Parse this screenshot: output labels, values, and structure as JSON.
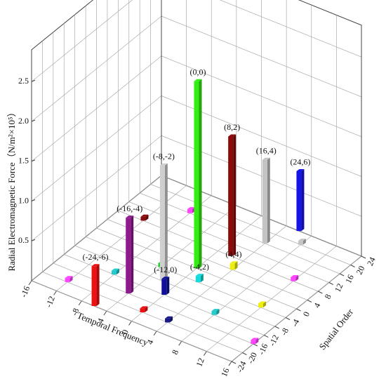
{
  "chart_data": {
    "type": "bar3d",
    "x_label": "Temporal Frequency",
    "y_label": "Spatial Order",
    "z_label": "Radial Electromagnetic Force（N/m²×10⁵）",
    "xlim": [
      -16,
      16
    ],
    "xticks": [
      -16,
      -12,
      -8,
      -4,
      0,
      4,
      8,
      12,
      16
    ],
    "ylim": [
      -24,
      24
    ],
    "yticks": [
      -24,
      -20,
      -16,
      -12,
      -8,
      -4,
      0,
      4,
      8,
      12,
      16,
      20,
      24
    ],
    "zlim": [
      0,
      2.9
    ],
    "zticks": [
      0.5,
      {
        "value": 1,
        "label": "1.0"
      },
      1.5,
      {
        "value": 2,
        "label": "2.0"
      },
      2.5
    ],
    "grid": true,
    "bars": [
      {
        "label": "(0,0)",
        "x": 0,
        "y": 0,
        "value": 2.35,
        "color": "#33ee11"
      },
      {
        "label": "(8,2)",
        "x": 2,
        "y": 8,
        "value": 1.5,
        "color": "#8b0a0a"
      },
      {
        "label": "(16,4)",
        "x": 4,
        "y": 16,
        "value": 1.05,
        "color": "#c4c4c4"
      },
      {
        "label": "(24,6)",
        "x": 6,
        "y": 24,
        "value": 0.75,
        "color": "#1515e6"
      },
      {
        "label": "(-8,-2)",
        "x": -2,
        "y": -8,
        "value": 1.45,
        "color": "#cfcfcf"
      },
      {
        "label": "(-16,-4)",
        "x": -4,
        "y": -16,
        "value": 0.95,
        "color": "#8e1a8e"
      },
      {
        "label": "(-24,-6)",
        "x": -6,
        "y": -24,
        "value": 0.5,
        "color": "#ee1111"
      },
      {
        "label": "(-12,0)",
        "x": 0,
        "y": -12,
        "value": 0.2,
        "color": "#10109a"
      },
      {
        "label": "(-4,2)",
        "x": 2,
        "y": -4,
        "value": 0.08,
        "color": "#11dddd"
      },
      {
        "label": "(4,4)",
        "x": 4,
        "y": 4,
        "value": 0.08,
        "color": "#eeee11"
      },
      {
        "x": -12,
        "y": -20,
        "value": 0.05,
        "color": "#ff44ff"
      },
      {
        "x": -8,
        "y": -12,
        "value": 0.05,
        "color": "#22cccc"
      },
      {
        "x": -4,
        "y": -4,
        "value": 0.05,
        "color": "#22cc22"
      },
      {
        "x": 4,
        "y": -20,
        "value": 0.05,
        "color": "#1a1a8a"
      },
      {
        "x": 8,
        "y": -12,
        "value": 0.05,
        "color": "#22cccc"
      },
      {
        "x": 12,
        "y": -4,
        "value": 0.05,
        "color": "#eeee11"
      },
      {
        "x": 12,
        "y": 8,
        "value": 0.05,
        "color": "#ff44ff"
      },
      {
        "x": -12,
        "y": 8,
        "value": 0.05,
        "color": "#8b0a0a"
      },
      {
        "x": -8,
        "y": 16,
        "value": 0.05,
        "color": "#ff44ff"
      },
      {
        "x": 8,
        "y": 20,
        "value": 0.05,
        "color": "#c4c4c4"
      },
      {
        "x": 0,
        "y": -20,
        "value": 0.05,
        "color": "#ee1111"
      },
      {
        "x": 16,
        "y": -16,
        "value": 0.05,
        "color": "#ff44ff"
      }
    ]
  }
}
